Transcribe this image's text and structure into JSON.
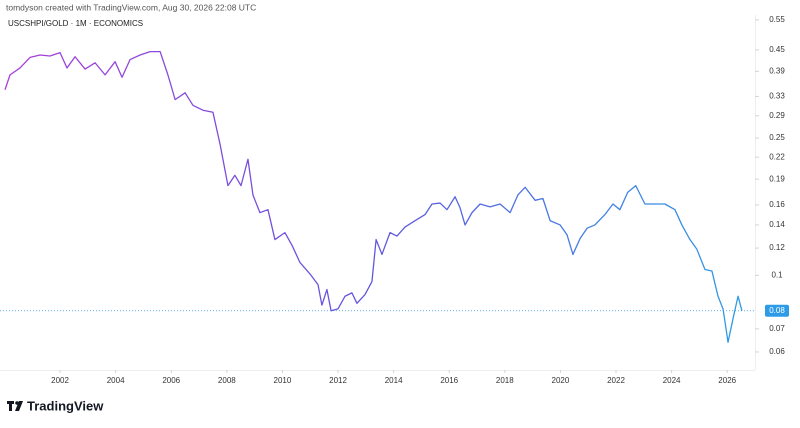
{
  "header": {
    "credit": "tomdyson created with TradingView.com, Aug 30, 2026 22:08 UTC",
    "logo": "TradingView"
  },
  "chart_data": {
    "type": "line",
    "title": "USCSHPI/GOLD · 1M · ECONOMICS",
    "log_scale": true,
    "colors": [
      "#a93fd9",
      "#6157de",
      "#2e9be6"
    ],
    "x": [
      2000.02,
      2000.2,
      2000.56,
      2000.92,
      2001.28,
      2001.64,
      2002.0,
      2002.25,
      2002.54,
      2002.9,
      2003.26,
      2003.62,
      2003.98,
      2004.23,
      2004.52,
      2004.88,
      2005.24,
      2005.6,
      2005.88,
      2006.14,
      2006.5,
      2006.78,
      2007.14,
      2007.5,
      2007.76,
      2008.04,
      2008.29,
      2008.51,
      2008.76,
      2008.94,
      2009.19,
      2009.48,
      2009.73,
      2010.09,
      2010.35,
      2010.63,
      2010.99,
      2011.28,
      2011.42,
      2011.6,
      2011.75,
      2012.0,
      2012.25,
      2012.5,
      2012.68,
      2012.97,
      2013.22,
      2013.37,
      2013.58,
      2013.87,
      2014.12,
      2014.41,
      2014.77,
      2015.13,
      2015.38,
      2015.67,
      2015.92,
      2016.21,
      2016.39,
      2016.57,
      2016.82,
      2017.11,
      2017.47,
      2017.83,
      2018.19,
      2018.47,
      2018.73,
      2019.09,
      2019.37,
      2019.63,
      2019.99,
      2020.24,
      2020.45,
      2020.71,
      2020.96,
      2021.24,
      2021.6,
      2021.89,
      2022.14,
      2022.42,
      2022.71,
      2023.04,
      2023.4,
      2023.76,
      2024.12,
      2024.37,
      2024.66,
      2024.91,
      2025.2,
      2025.45,
      2025.67,
      2025.85,
      2026.03,
      2026.21,
      2026.39,
      2026.53
    ],
    "values": [
      0.345,
      0.381,
      0.399,
      0.428,
      0.435,
      0.432,
      0.442,
      0.399,
      0.43,
      0.396,
      0.413,
      0.381,
      0.416,
      0.375,
      0.422,
      0.435,
      0.445,
      0.445,
      0.381,
      0.323,
      0.338,
      0.311,
      0.301,
      0.297,
      0.239,
      0.182,
      0.195,
      0.182,
      0.217,
      0.171,
      0.152,
      0.155,
      0.127,
      0.133,
      0.122,
      0.109,
      0.101,
      0.094,
      0.082,
      0.091,
      0.079,
      0.08,
      0.087,
      0.089,
      0.083,
      0.088,
      0.096,
      0.127,
      0.115,
      0.133,
      0.13,
      0.138,
      0.144,
      0.15,
      0.161,
      0.162,
      0.155,
      0.169,
      0.157,
      0.14,
      0.152,
      0.161,
      0.158,
      0.161,
      0.152,
      0.171,
      0.18,
      0.165,
      0.167,
      0.144,
      0.14,
      0.131,
      0.115,
      0.128,
      0.137,
      0.14,
      0.15,
      0.161,
      0.155,
      0.174,
      0.182,
      0.161,
      0.161,
      0.161,
      0.155,
      0.14,
      0.127,
      0.119,
      0.104,
      0.103,
      0.087,
      0.08,
      0.064,
      0.075,
      0.087,
      0.079
    ],
    "last_value_label": "0.08",
    "xlim": [
      1999.84,
      2027.0
    ],
    "xticks": [
      2002,
      2004,
      2006,
      2008,
      2010,
      2012,
      2014,
      2016,
      2018,
      2020,
      2022,
      2024,
      2026
    ],
    "ylim": [
      0.0532,
      0.568
    ],
    "yticks": [
      0.55,
      0.45,
      0.39,
      0.33,
      0.29,
      0.25,
      0.22,
      0.19,
      0.16,
      0.14,
      0.12,
      0.1,
      0.07,
      0.06
    ]
  }
}
